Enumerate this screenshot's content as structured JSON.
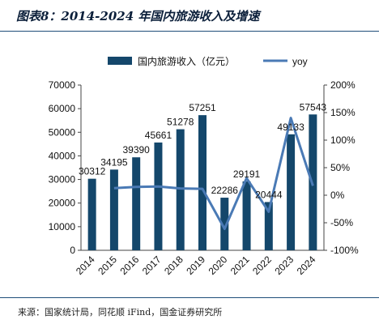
{
  "title": "图表8：2014-2024 年国内旅游收入及增速",
  "source": "来源：国家统计局，同花顺 iFind，国金证券研究所",
  "chart_data": {
    "type": "bar",
    "categories": [
      "2014",
      "2015",
      "2016",
      "2017",
      "2018",
      "2019",
      "2020",
      "2021",
      "2022",
      "2023",
      "2024"
    ],
    "series": [
      {
        "name": "国内旅游收入（亿元）",
        "type": "bar",
        "axis": "left",
        "values": [
          30312,
          34195,
          39390,
          45661,
          51278,
          57251,
          22286,
          29191,
          20444,
          49133,
          57543
        ],
        "color": "#14476b"
      },
      {
        "name": "yoy",
        "type": "line",
        "axis": "right",
        "values": [
          null,
          0.128,
          0.152,
          0.159,
          0.123,
          0.116,
          -0.611,
          0.31,
          -0.3,
          1.403,
          0.171
        ],
        "color": "#4a7ab5"
      }
    ],
    "data_labels": [
      "30312",
      "34195",
      "39390",
      "45661",
      "51278",
      "57251",
      "22286",
      "29191",
      "20444",
      "49133",
      "57543"
    ],
    "y_left": {
      "min": 0,
      "max": 70000,
      "ticks": [
        0,
        10000,
        20000,
        30000,
        40000,
        50000,
        60000,
        70000
      ]
    },
    "y_right": {
      "min": -1.0,
      "max": 2.0,
      "ticks": [
        -1.0,
        -0.5,
        0,
        0.5,
        1.0,
        1.5,
        2.0
      ],
      "tick_labels": [
        "-100%",
        "-50%",
        "0%",
        "50%",
        "100%",
        "150%",
        "200%"
      ]
    },
    "legend_position": "top",
    "grid": false
  }
}
